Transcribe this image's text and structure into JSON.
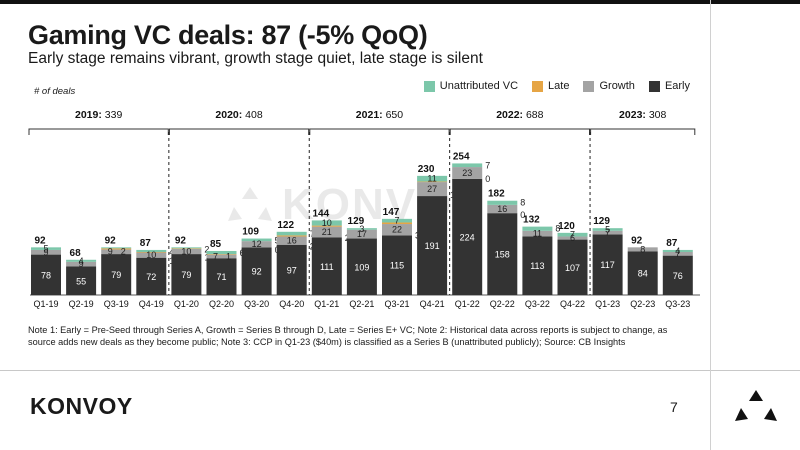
{
  "title": "Gaming VC deals: 87 (-5% QoQ)",
  "subtitle": "Early stage remains vibrant, growth stage quiet, late stage is silent",
  "unit_note": "# of deals",
  "legend": [
    {
      "label": "Unattributed VC",
      "color": "#7cc7aa"
    },
    {
      "label": "Late",
      "color": "#e6a545"
    },
    {
      "label": "Growth",
      "color": "#a3a3a3"
    },
    {
      "label": "Early",
      "color": "#333333"
    }
  ],
  "notes": "Note 1: Early = Pre-Seed through Series A, Growth = Series B through D, Late = Series E+ VC; Note 2: Historical data across reports is subject to change, as source adds new deals as they become public; Note 3: CCP in Q1-23 ($40m) is classified as a Series B (unattributed publicly); Source: CB Insights",
  "logo": "KONVOY",
  "watermark": "KONVOY",
  "page_number": "7",
  "chart_data": {
    "type": "bar",
    "stacked": true,
    "categories": [
      "Q1-19",
      "Q2-19",
      "Q3-19",
      "Q4-19",
      "Q1-20",
      "Q2-20",
      "Q3-20",
      "Q4-20",
      "Q1-21",
      "Q2-21",
      "Q3-21",
      "Q4-21",
      "Q1-22",
      "Q2-22",
      "Q3-22",
      "Q4-22",
      "Q1-23",
      "Q2-23",
      "Q3-23"
    ],
    "series": [
      {
        "name": "Early",
        "color": "#333333",
        "values": [
          78,
          55,
          79,
          72,
          79,
          71,
          92,
          97,
          111,
          109,
          115,
          191,
          224,
          158,
          113,
          107,
          117,
          84,
          76
        ]
      },
      {
        "name": "Growth",
        "color": "#a3a3a3",
        "values": [
          9,
          9,
          9,
          10,
          10,
          7,
          12,
          16,
          21,
          17,
          22,
          27,
          23,
          16,
          11,
          6,
          7,
          8,
          7
        ]
      },
      {
        "name": "Late",
        "color": "#e6a545",
        "values": [
          0,
          0,
          2,
          1,
          1,
          1,
          0,
          2,
          2,
          0,
          3,
          1,
          0,
          0,
          0,
          0,
          0,
          0,
          0
        ]
      },
      {
        "name": "Unattributed VC",
        "color": "#7cc7aa",
        "values": [
          5,
          4,
          2,
          4,
          2,
          6,
          5,
          7,
          10,
          3,
          7,
          11,
          7,
          8,
          8,
          7,
          5,
          0,
          4
        ]
      }
    ],
    "totals": [
      92,
      68,
      92,
      87,
      92,
      85,
      109,
      122,
      144,
      129,
      147,
      230,
      254,
      182,
      132,
      120,
      129,
      92,
      87
    ],
    "labels": {
      "early": [
        "78",
        "55",
        "79",
        "72",
        "79",
        "71",
        "92",
        "97",
        "111",
        "109",
        "115",
        "191",
        "224",
        "158",
        "113",
        "107",
        "117",
        "84",
        "76"
      ],
      "growth": [
        "9",
        "9",
        "9",
        "10",
        "10",
        "7",
        "12",
        "16",
        "21",
        "17",
        "22",
        "27",
        "23",
        "16",
        "11",
        "6",
        "7",
        "8",
        "7"
      ],
      "late": [
        "",
        "",
        "2",
        "1",
        "1",
        "1",
        "0",
        "2",
        "2",
        "",
        "3",
        "1",
        "0",
        "0",
        "",
        "",
        "",
        "",
        ""
      ],
      "unattr": [
        "5",
        "4",
        "",
        "4",
        "2",
        "6",
        "5",
        "7",
        "10",
        "3",
        "7",
        "11",
        "7",
        "8",
        "8",
        "7",
        "5",
        "",
        "4"
      ]
    },
    "label_inside": {
      "late": [
        false,
        false,
        true,
        false,
        false,
        true,
        false,
        false,
        false,
        false,
        false,
        false,
        false,
        false,
        false,
        false,
        false,
        false,
        false
      ],
      "unattr": [
        true,
        true,
        false,
        false,
        false,
        false,
        false,
        false,
        true,
        true,
        true,
        true,
        false,
        false,
        false,
        true,
        true,
        false,
        true
      ]
    },
    "years": [
      {
        "label": "2019:",
        "total": "339"
      },
      {
        "label": "2020:",
        "total": "408"
      },
      {
        "label": "2021:",
        "total": "650"
      },
      {
        "label": "2022:",
        "total": "688"
      },
      {
        "label": "2023:",
        "total": "308"
      }
    ],
    "ylim": [
      0,
      260
    ]
  }
}
